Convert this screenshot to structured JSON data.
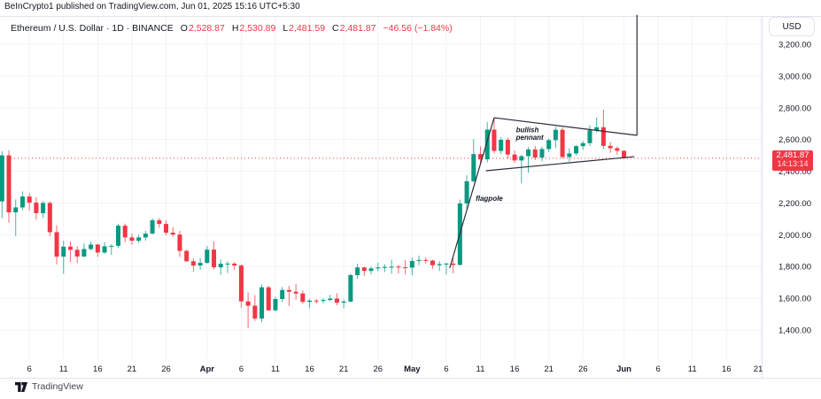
{
  "header": {
    "attribution": "BeInCrypto1 published on TradingView.com, Jun 01, 2025 15:16 UTC+5:30"
  },
  "legend": {
    "title": "Ethereum / U.S. Dollar · 1D · BINANCE",
    "o_label": "O",
    "o": "2,528.87",
    "h_label": "H",
    "h": "2,530.89",
    "l_label": "L",
    "l": "2,481.59",
    "c_label": "C",
    "c": "2,481.87",
    "change": "−46.56 (−1.84%)"
  },
  "price_scale": {
    "currency_button": "USD",
    "labels": [
      "3,200.00",
      "3,000.00",
      "2,800.00",
      "2,600.00",
      "2,400.00",
      "2,200.00",
      "2,000.00",
      "1,800.00",
      "1,600.00",
      "1,400.00"
    ],
    "last_price": {
      "price": "2,481.87",
      "countdown": "14:13:14"
    }
  },
  "footer": {
    "brand": "TradingView"
  },
  "colors": {
    "up": "#089981",
    "down": "#F23645",
    "grid": "#F0F3FA",
    "border": "#E0E3EB",
    "text": "#131722",
    "muted": "#434651",
    "drawing": "#2A2E39",
    "price_label_bg": "#F23645"
  },
  "drawings": {
    "flagpole_line": {
      "from": {
        "day": 65.5,
        "price": 1790
      },
      "to": {
        "day": 72,
        "price": 2737
      }
    },
    "pennant_upper": {
      "from": {
        "day": 72,
        "price": 2737
      },
      "to": {
        "day": 92.9,
        "price": 2626
      }
    },
    "pennant_lower": {
      "from": {
        "day": 70.8,
        "price": 2403
      },
      "to": {
        "day": 92.5,
        "price": 2492
      }
    },
    "projection_line": {
      "from": {
        "day": 92.9,
        "price": 2626
      },
      "to": {
        "day": 92.9,
        "price": 3385
      }
    },
    "labels": {
      "pennant": {
        "lines": [
          "bullish",
          "pennant"
        ],
        "day": 75.2,
        "price": 2690
      },
      "flagpole": {
        "text": "flagpole",
        "day": 69.3,
        "price": 2258
      }
    }
  },
  "chart_data": {
    "type": "candlestick",
    "title": "Ethereum / U.S. Dollar",
    "interval": "1D",
    "exchange": "BINANCE",
    "currency": "USD",
    "start_date": "2025-03-02",
    "end_date": "2025-06-01",
    "ylim": [
      1220,
      3380
    ],
    "y_ticks": [
      3200,
      3000,
      2800,
      2600,
      2400,
      2200,
      2000,
      1800,
      1600,
      1400
    ],
    "x_ticks": [
      {
        "label": "6",
        "day": 4,
        "bold": false
      },
      {
        "label": "11",
        "day": 9,
        "bold": false
      },
      {
        "label": "16",
        "day": 14,
        "bold": false
      },
      {
        "label": "21",
        "day": 19,
        "bold": false
      },
      {
        "label": "26",
        "day": 24,
        "bold": false
      },
      {
        "label": "Apr",
        "day": 30,
        "bold": true
      },
      {
        "label": "6",
        "day": 35,
        "bold": false
      },
      {
        "label": "11",
        "day": 40,
        "bold": false
      },
      {
        "label": "16",
        "day": 45,
        "bold": false
      },
      {
        "label": "21",
        "day": 50,
        "bold": false
      },
      {
        "label": "26",
        "day": 55,
        "bold": false
      },
      {
        "label": "May",
        "day": 60,
        "bold": true
      },
      {
        "label": "6",
        "day": 65,
        "bold": false
      },
      {
        "label": "11",
        "day": 70,
        "bold": false
      },
      {
        "label": "16",
        "day": 75,
        "bold": false
      },
      {
        "label": "21",
        "day": 80,
        "bold": false
      },
      {
        "label": "26",
        "day": 85,
        "bold": false
      },
      {
        "label": "Jun",
        "day": 91,
        "bold": true
      },
      {
        "label": "6",
        "day": 96,
        "bold": false
      },
      {
        "label": "11",
        "day": 101,
        "bold": false
      },
      {
        "label": "16",
        "day": 106,
        "bold": false
      },
      {
        "label": "21",
        "day": 111,
        "bold": false
      }
    ],
    "price_line": 2481.87,
    "candles": [
      [
        "2025-03-02",
        2210,
        2525,
        2105,
        2500
      ],
      [
        "2025-03-03",
        2500,
        2532,
        2075,
        2141
      ],
      [
        "2025-03-04",
        2141,
        2222,
        1993,
        2172
      ],
      [
        "2025-03-05",
        2172,
        2273,
        2155,
        2241
      ],
      [
        "2025-03-06",
        2241,
        2262,
        2153,
        2202
      ],
      [
        "2025-03-07",
        2202,
        2236,
        2096,
        2136
      ],
      [
        "2025-03-08",
        2136,
        2212,
        2105,
        2200
      ],
      [
        "2025-03-09",
        2200,
        2212,
        1989,
        2016
      ],
      [
        "2025-03-10",
        2016,
        2060,
        1813,
        1862
      ],
      [
        "2025-03-11",
        1862,
        1963,
        1754,
        1925
      ],
      [
        "2025-03-12",
        1925,
        1958,
        1829,
        1905
      ],
      [
        "2025-03-13",
        1905,
        1927,
        1821,
        1863
      ],
      [
        "2025-03-14",
        1863,
        1945,
        1858,
        1910
      ],
      [
        "2025-03-15",
        1910,
        1957,
        1900,
        1938
      ],
      [
        "2025-03-16",
        1938,
        1942,
        1860,
        1888
      ],
      [
        "2025-03-17",
        1888,
        1952,
        1879,
        1927
      ],
      [
        "2025-03-18",
        1927,
        1940,
        1872,
        1930
      ],
      [
        "2025-03-19",
        1930,
        2069,
        1918,
        2057
      ],
      [
        "2025-03-20",
        2057,
        2070,
        1952,
        1983
      ],
      [
        "2025-03-21",
        1983,
        2008,
        1937,
        1962
      ],
      [
        "2025-03-22",
        1962,
        2000,
        1948,
        1983
      ],
      [
        "2025-03-23",
        1983,
        2024,
        1962,
        2007
      ],
      [
        "2025-03-24",
        2007,
        2104,
        2003,
        2091
      ],
      [
        "2025-03-25",
        2091,
        2105,
        2044,
        2068
      ],
      [
        "2025-03-26",
        2068,
        2089,
        1996,
        2013
      ],
      [
        "2025-03-27",
        2013,
        2048,
        1987,
        2001
      ],
      [
        "2025-03-28",
        2001,
        2024,
        1860,
        1898
      ],
      [
        "2025-03-29",
        1898,
        1906,
        1830,
        1833
      ],
      [
        "2025-03-30",
        1833,
        1851,
        1767,
        1806
      ],
      [
        "2025-03-31",
        1806,
        1854,
        1780,
        1823
      ],
      [
        "2025-04-01",
        1823,
        1929,
        1817,
        1906
      ],
      [
        "2025-04-02",
        1906,
        1957,
        1781,
        1795
      ],
      [
        "2025-04-03",
        1795,
        1844,
        1747,
        1817
      ],
      [
        "2025-04-04",
        1817,
        1833,
        1759,
        1818
      ],
      [
        "2025-04-05",
        1818,
        1827,
        1778,
        1806
      ],
      [
        "2025-04-06",
        1806,
        1813,
        1540,
        1580
      ],
      [
        "2025-04-07",
        1580,
        1637,
        1411,
        1553
      ],
      [
        "2025-04-08",
        1553,
        1620,
        1457,
        1472
      ],
      [
        "2025-04-09",
        1472,
        1687,
        1449,
        1669
      ],
      [
        "2025-04-10",
        1669,
        1678,
        1520,
        1524
      ],
      [
        "2025-04-11",
        1524,
        1610,
        1516,
        1595
      ],
      [
        "2025-04-12",
        1595,
        1671,
        1576,
        1652
      ],
      [
        "2025-04-13",
        1652,
        1679,
        1552,
        1641
      ],
      [
        "2025-04-14",
        1641,
        1690,
        1591,
        1630
      ],
      [
        "2025-04-15",
        1630,
        1649,
        1565,
        1577
      ],
      [
        "2025-04-16",
        1577,
        1596,
        1537,
        1585
      ],
      [
        "2025-04-17",
        1585,
        1595,
        1566,
        1583
      ],
      [
        "2025-04-18",
        1583,
        1600,
        1567,
        1589
      ],
      [
        "2025-04-19",
        1589,
        1622,
        1581,
        1598
      ],
      [
        "2025-04-20",
        1598,
        1632,
        1556,
        1572
      ],
      [
        "2025-04-21",
        1572,
        1592,
        1537,
        1579
      ],
      [
        "2025-04-22",
        1579,
        1754,
        1574,
        1746
      ],
      [
        "2025-04-23",
        1746,
        1818,
        1723,
        1794
      ],
      [
        "2025-04-24",
        1794,
        1798,
        1740,
        1772
      ],
      [
        "2025-04-25",
        1772,
        1799,
        1751,
        1788
      ],
      [
        "2025-04-26",
        1788,
        1823,
        1770,
        1794
      ],
      [
        "2025-04-27",
        1794,
        1814,
        1765,
        1797
      ],
      [
        "2025-04-28",
        1797,
        1843,
        1754,
        1799
      ],
      [
        "2025-04-29",
        1799,
        1810,
        1756,
        1795
      ],
      [
        "2025-04-30",
        1795,
        1840,
        1750,
        1793
      ],
      [
        "2025-05-01",
        1793,
        1856,
        1745,
        1835
      ],
      [
        "2025-05-02",
        1835,
        1869,
        1808,
        1841
      ],
      [
        "2025-05-03",
        1841,
        1857,
        1817,
        1837
      ],
      [
        "2025-05-04",
        1837,
        1843,
        1786,
        1808
      ],
      [
        "2025-05-05",
        1808,
        1834,
        1772,
        1815
      ],
      [
        "2025-05-06",
        1815,
        1824,
        1750,
        1818
      ],
      [
        "2025-05-07",
        1818,
        1855,
        1756,
        1810
      ],
      [
        "2025-05-08",
        1810,
        2221,
        1805,
        2197
      ],
      [
        "2025-05-09",
        2197,
        2375,
        2150,
        2337
      ],
      [
        "2025-05-10",
        2337,
        2602,
        2330,
        2508
      ],
      [
        "2025-05-11",
        2508,
        2557,
        2445,
        2475
      ],
      [
        "2025-05-12",
        2475,
        2710,
        2456,
        2662
      ],
      [
        "2025-05-13",
        2662,
        2738,
        2512,
        2528
      ],
      [
        "2025-05-14",
        2528,
        2615,
        2508,
        2598
      ],
      [
        "2025-05-15",
        2598,
        2612,
        2480,
        2505
      ],
      [
        "2025-05-16",
        2505,
        2530,
        2452,
        2468
      ],
      [
        "2025-05-17",
        2468,
        2505,
        2324,
        2495
      ],
      [
        "2025-05-18",
        2495,
        2552,
        2390,
        2537
      ],
      [
        "2025-05-19",
        2537,
        2560,
        2470,
        2486
      ],
      [
        "2025-05-20",
        2486,
        2555,
        2462,
        2540
      ],
      [
        "2025-05-21",
        2540,
        2605,
        2520,
        2596
      ],
      [
        "2025-05-22",
        2596,
        2680,
        2545,
        2661
      ],
      [
        "2025-05-23",
        2661,
        2675,
        2480,
        2490
      ],
      [
        "2025-05-24",
        2490,
        2545,
        2460,
        2512
      ],
      [
        "2025-05-25",
        2512,
        2565,
        2500,
        2558
      ],
      [
        "2025-05-26",
        2558,
        2590,
        2535,
        2577
      ],
      [
        "2025-05-27",
        2577,
        2690,
        2560,
        2658
      ],
      [
        "2025-05-28",
        2658,
        2739,
        2645,
        2677
      ],
      [
        "2025-05-29",
        2677,
        2788,
        2540,
        2560
      ],
      [
        "2025-05-30",
        2560,
        2585,
        2516,
        2545
      ],
      [
        "2025-05-31",
        2545,
        2556,
        2504,
        2529
      ],
      [
        "2025-06-01",
        2528.87,
        2530.89,
        2481.59,
        2481.87
      ]
    ]
  }
}
